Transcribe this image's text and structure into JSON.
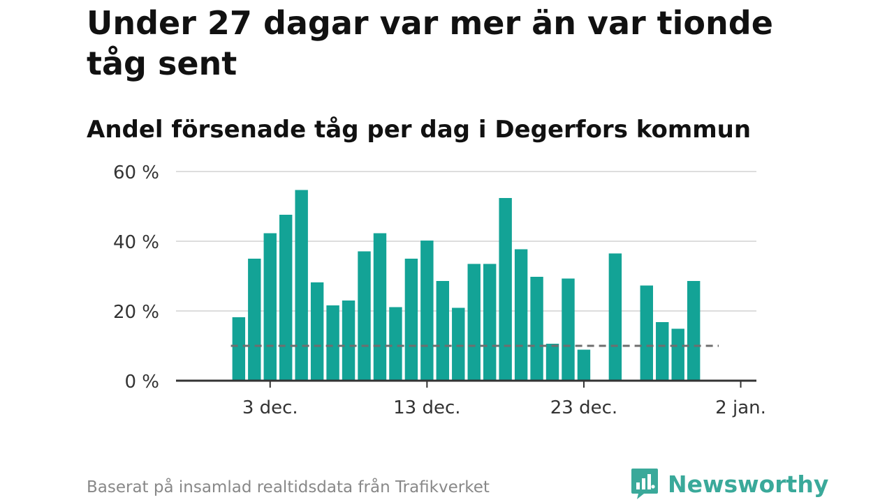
{
  "chart_data": {
    "type": "bar",
    "title": "Under 27 dagar var mer än var tionde tåg sent",
    "subtitle": "Andel försenade tåg per dag i Degerfors kommun",
    "x_unit": "day",
    "x": [
      "2023-12-01",
      "2023-12-02",
      "2023-12-03",
      "2023-12-04",
      "2023-12-05",
      "2023-12-06",
      "2023-12-07",
      "2023-12-08",
      "2023-12-09",
      "2023-12-10",
      "2023-12-11",
      "2023-12-12",
      "2023-12-13",
      "2023-12-14",
      "2023-12-15",
      "2023-12-16",
      "2023-12-17",
      "2023-12-18",
      "2023-12-19",
      "2023-12-20",
      "2023-12-21",
      "2023-12-22",
      "2023-12-23",
      "2023-12-24",
      "2023-12-25",
      "2023-12-26",
      "2023-12-27",
      "2023-12-28",
      "2023-12-29",
      "2023-12-30"
    ],
    "values": [
      18.2,
      35.0,
      42.3,
      47.6,
      54.7,
      28.2,
      21.6,
      23.0,
      37.1,
      42.3,
      21.1,
      35.0,
      40.2,
      28.6,
      20.9,
      33.5,
      33.5,
      52.4,
      37.7,
      29.8,
      10.6,
      29.3,
      8.9,
      0,
      36.5,
      0,
      27.3,
      16.8,
      14.9,
      28.6
    ],
    "xlim": [
      "2023-11-27",
      "2024-01-03"
    ],
    "ylim": [
      0,
      60
    ],
    "yticks": [
      0,
      20,
      40,
      60
    ],
    "ytick_labels": [
      "0 %",
      "20 %",
      "40 %",
      "60 %"
    ],
    "xticks": [
      "2023-12-03",
      "2023-12-13",
      "2023-12-23",
      "2024-01-02"
    ],
    "xtick_labels": [
      "3 dec.",
      "13 dec.",
      "23 dec.",
      "2 jan."
    ],
    "reference_line": {
      "value": 10,
      "style": "dashed"
    },
    "grid": true,
    "bar_color": "#13a396",
    "reference_color": "#6e6e6e",
    "grid_color": "#dddddd",
    "axis_color": "#333333"
  },
  "footer": {
    "source": "Baserat på insamlad realtidsdata från Trafikverket",
    "brand": "Newsworthy",
    "brand_color": "#3aa99a",
    "logo_icon": "newsworthy-logo-icon"
  }
}
